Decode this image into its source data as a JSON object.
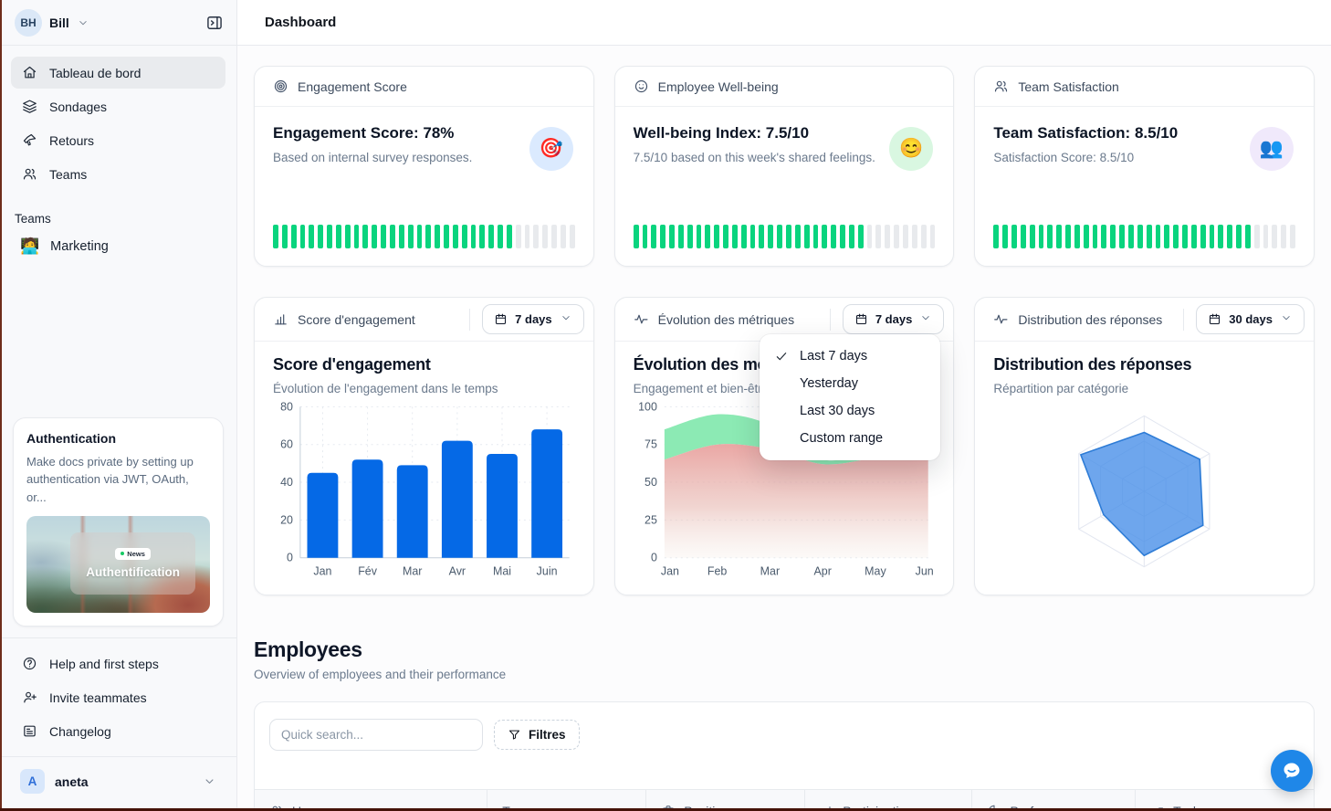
{
  "header": {
    "title": "Dashboard"
  },
  "sidebar": {
    "user": {
      "initials": "BH",
      "name": "Bill"
    },
    "nav": [
      {
        "label": "Tableau de bord",
        "icon": "home",
        "active": true
      },
      {
        "label": "Sondages",
        "icon": "layers",
        "active": false
      },
      {
        "label": "Retours",
        "icon": "megaphone",
        "active": false
      },
      {
        "label": "Teams",
        "icon": "users",
        "active": false
      }
    ],
    "teams_section": {
      "label": "Teams",
      "items": [
        {
          "label": "Marketing",
          "emoji": "🧑‍💻"
        }
      ]
    },
    "promo_card": {
      "title": "Authentication",
      "description": "Make docs private by setting up authentication via JWT, OAuth, or...",
      "badge_label": "News",
      "image_caption": "Authentification"
    },
    "footer": [
      {
        "label": "Help and first steps",
        "icon": "help"
      },
      {
        "label": "Invite teammates",
        "icon": "user-plus"
      },
      {
        "label": "Changelog",
        "icon": "news"
      }
    ],
    "org": {
      "initial": "A",
      "name": "aneta"
    }
  },
  "stat_cards": [
    {
      "header": "Engagement Score",
      "icon": "target",
      "headline": "Engagement Score: 78%",
      "sub": "Based on internal survey responses.",
      "emoji": "🎯",
      "badge_bg": "#dbeafe",
      "progress_pct": 78
    },
    {
      "header": "Employee Well-being",
      "icon": "smile",
      "headline": "Well-being Index: 7.5/10",
      "sub": "7.5/10 based on this week's shared feelings.",
      "emoji": "😊",
      "badge_bg": "#d9f7e1",
      "progress_pct": 75
    },
    {
      "header": "Team Satisfaction",
      "icon": "users",
      "headline": "Team Satisfaction: 8.5/10",
      "sub": "Satisfaction Score: 8.5/10",
      "emoji": "👥",
      "badge_bg": "#f0e9fb",
      "progress_pct": 85
    }
  ],
  "progress_colors": {
    "on": "#09d47e",
    "off": "#e8eaed"
  },
  "chart_cards": [
    {
      "header": "Score d'engagement",
      "icon": "barchart",
      "range": "7 days"
    },
    {
      "header": "Évolution des métriques",
      "icon": "activity",
      "range": "7 days"
    },
    {
      "header": "Distribution des réponses",
      "icon": "activity",
      "range": "30 days"
    }
  ],
  "dropdown_menu": {
    "items": [
      {
        "label": "Last 7 days",
        "checked": true
      },
      {
        "label": "Yesterday",
        "checked": false
      },
      {
        "label": "Last 30 days",
        "checked": false
      },
      {
        "label": "Custom range",
        "checked": false
      }
    ]
  },
  "chart_data": [
    {
      "id": "engagement_bar",
      "type": "bar",
      "title": "Score d'engagement",
      "subtitle": "Évolution de l'engagement dans le temps",
      "categories": [
        "Jan",
        "Fév",
        "Mar",
        "Avr",
        "Mai",
        "Juin"
      ],
      "values": [
        45,
        52,
        49,
        62,
        55,
        68
      ],
      "ylim": [
        0,
        80
      ],
      "yticks": [
        0,
        20,
        40,
        60,
        80
      ],
      "bar_color": "#0569e6",
      "grid": true,
      "legend": false
    },
    {
      "id": "metrics_area",
      "type": "area",
      "title": "Évolution des métriques",
      "subtitle": "Engagement et bien-être",
      "x": [
        "Jan",
        "Feb",
        "Mar",
        "Apr",
        "May",
        "Jun"
      ],
      "series": [
        {
          "name": "Engagement",
          "color": "#8ceab4",
          "values": [
            85,
            95,
            88,
            65,
            72,
            85
          ]
        },
        {
          "name": "Bien-être",
          "color": "#e89d9a",
          "values": [
            65,
            75,
            72,
            62,
            66,
            70
          ]
        }
      ],
      "ylim": [
        0,
        100
      ],
      "yticks": [
        0,
        25,
        50,
        75,
        100
      ],
      "grid": true,
      "legend": false
    },
    {
      "id": "responses_radar",
      "type": "radar",
      "title": "Distribution des réponses",
      "subtitle": "Répartition par catégorie",
      "axes": 6,
      "values_pct": [
        78,
        85,
        90,
        85,
        62,
        97
      ],
      "max": 100,
      "fill": "#4a90e8",
      "stroke": "#2e7cd6",
      "grid_levels": 3
    }
  ],
  "employees": {
    "title": "Employees",
    "subtitle": "Overview of employees and their performance",
    "search_placeholder": "Quick search...",
    "filters_label": "Filtres",
    "columns": [
      {
        "label": "User",
        "icon": "users"
      },
      {
        "label": "Team",
        "icon": null
      },
      {
        "label": "Position",
        "icon": "briefcase"
      },
      {
        "label": "Participation",
        "icon": "barchart"
      },
      {
        "label": "Performance",
        "icon": "pie"
      },
      {
        "label": "Tasks",
        "icon": "trend"
      }
    ]
  }
}
